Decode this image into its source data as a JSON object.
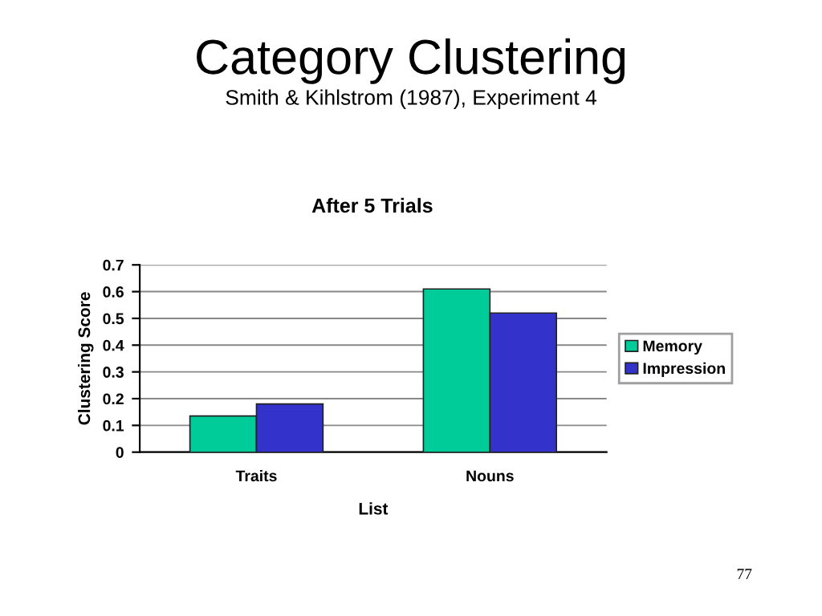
{
  "chart_data": {
    "type": "bar",
    "title": "Category Clustering",
    "subtitle": "Smith & Kihlstrom (1987), Experiment 4",
    "annotations": [
      "After 5 Trials",
      "77"
    ],
    "xlabel": "List",
    "ylabel": "Clustering Score",
    "categories": [
      "Traits",
      "Nouns"
    ],
    "series": [
      {
        "name": "Memory",
        "color": "#00cc99",
        "values": [
          0.135,
          0.61
        ]
      },
      {
        "name": "Impression",
        "color": "#3333cc",
        "values": [
          0.18,
          0.52
        ]
      }
    ],
    "ylim": [
      0,
      0.7
    ],
    "yticks": [
      {
        "value": 0,
        "label": "0"
      },
      0.1,
      0.2,
      0.3,
      0.4,
      0.5,
      0.6,
      0.7
    ],
    "grid": "y",
    "legend": "right"
  }
}
